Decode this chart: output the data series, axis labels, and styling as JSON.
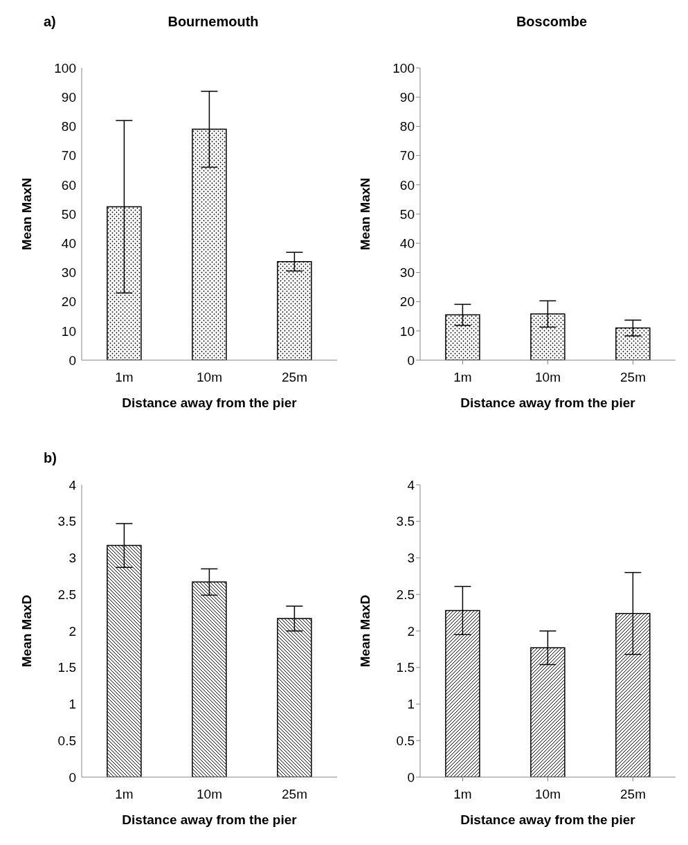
{
  "chart_data": [
    {
      "type": "bar",
      "title": "Bournemouth",
      "annotations": [
        "a)"
      ],
      "xlabel": "Distance away from the pier",
      "ylabel": "Mean MaxN",
      "categories": [
        "1m",
        "10m",
        "25m"
      ],
      "series": [
        {
          "color": "#000000",
          "values": [
            52.5,
            79,
            33.7
          ],
          "errors": [
            29.5,
            13,
            3.2
          ]
        }
      ],
      "ylim": [
        0,
        100
      ],
      "yticks": [
        0,
        10,
        20,
        30,
        40,
        50,
        60,
        70,
        80,
        90,
        100
      ],
      "grid": false,
      "legend": false
    },
    {
      "type": "bar",
      "title": "Boscombe",
      "xlabel": "Distance away from the pier",
      "ylabel": "Mean MaxN",
      "categories": [
        "1m",
        "10m",
        "25m"
      ],
      "series": [
        {
          "color": "#000000",
          "values": [
            15.5,
            15.8,
            11
          ],
          "errors": [
            3.6,
            4.5,
            2.7
          ]
        }
      ],
      "ylim": [
        0,
        100
      ],
      "yticks": [
        0,
        10,
        20,
        30,
        40,
        50,
        60,
        70,
        80,
        90,
        100
      ],
      "grid": false,
      "legend": false
    },
    {
      "type": "bar",
      "annotations": [
        "b)"
      ],
      "xlabel": "Distance away from the pier",
      "ylabel": "Mean MaxD",
      "categories": [
        "1m",
        "10m",
        "25m"
      ],
      "series": [
        {
          "color": "#000000",
          "values": [
            3.17,
            2.67,
            2.17
          ],
          "errors": [
            0.3,
            0.18,
            0.17
          ]
        }
      ],
      "ylim": [
        0,
        4
      ],
      "yticks": [
        0,
        0.5,
        1,
        1.5,
        2,
        2.5,
        3,
        3.5,
        4
      ],
      "grid": false,
      "legend": false
    },
    {
      "type": "bar",
      "xlabel": "Distance away from the pier",
      "ylabel": "Mean MaxD",
      "categories": [
        "1m",
        "10m",
        "25m"
      ],
      "series": [
        {
          "color": "#000000",
          "values": [
            2.28,
            1.77,
            2.24
          ],
          "errors": [
            0.33,
            0.23,
            0.56
          ]
        }
      ],
      "ylim": [
        0,
        4
      ],
      "yticks": [
        0,
        0.5,
        1,
        1.5,
        2,
        2.5,
        3,
        3.5,
        4
      ],
      "grid": false,
      "legend": false
    }
  ]
}
